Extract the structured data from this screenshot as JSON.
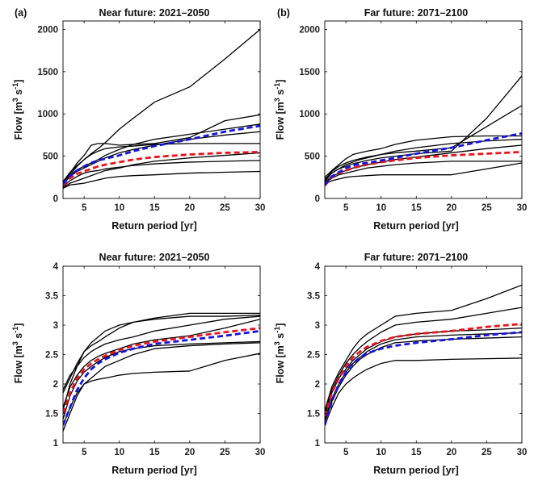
{
  "colors": {
    "black": "#000000",
    "mean_a": "#e8141c",
    "mean_b": "#1414e0"
  },
  "chart_data": [
    {
      "type": "line",
      "panel_label": "(a)",
      "title": "Near future: 2021–2050",
      "xlabel": "Return period [yr]",
      "ylabel": "Flow [m^3 s^-1]",
      "xlim": [
        2,
        30
      ],
      "ylim": [
        0,
        2100
      ],
      "xticks": [
        5,
        10,
        15,
        20,
        25,
        30
      ],
      "yticks": [
        0,
        500,
        1000,
        1500,
        2000
      ],
      "x": [
        2,
        3,
        4,
        5,
        6,
        7,
        8,
        10,
        12,
        15,
        20,
        25,
        30
      ],
      "series": [
        {
          "style": "solid",
          "color": "#000000",
          "values": [
            150,
            280,
            380,
            460,
            530,
            590,
            660,
            820,
            950,
            1140,
            1320,
            1650,
            2000
          ]
        },
        {
          "style": "solid",
          "color": "#000000",
          "values": [
            180,
            300,
            420,
            510,
            630,
            650,
            650,
            630,
            640,
            650,
            720,
            920,
            990
          ]
        },
        {
          "style": "solid",
          "color": "#000000",
          "values": [
            160,
            270,
            340,
            380,
            420,
            460,
            510,
            580,
            640,
            700,
            760,
            820,
            880
          ]
        },
        {
          "style": "solid",
          "color": "#000000",
          "values": [
            200,
            310,
            390,
            460,
            520,
            560,
            590,
            610,
            620,
            640,
            650,
            650,
            650
          ]
        },
        {
          "style": "solid",
          "color": "#000000",
          "values": [
            170,
            260,
            320,
            360,
            400,
            440,
            480,
            540,
            580,
            630,
            700,
            750,
            790
          ]
        },
        {
          "style": "solid",
          "color": "#000000",
          "values": [
            140,
            210,
            260,
            300,
            320,
            330,
            350,
            370,
            390,
            410,
            430,
            440,
            450
          ]
        },
        {
          "style": "solid",
          "color": "#000000",
          "values": [
            120,
            160,
            170,
            180,
            200,
            220,
            240,
            260,
            270,
            280,
            300,
            310,
            320
          ]
        },
        {
          "style": "solid",
          "color": "#000000",
          "values": [
            130,
            180,
            210,
            240,
            270,
            300,
            330,
            360,
            400,
            440,
            480,
            510,
            540
          ]
        },
        {
          "style": "dashed",
          "color": "#e8141c",
          "values": [
            150,
            240,
            290,
            320,
            350,
            380,
            400,
            430,
            460,
            490,
            520,
            540,
            550
          ]
        },
        {
          "style": "dashed",
          "color": "#1414e0",
          "values": [
            170,
            270,
            330,
            380,
            420,
            450,
            470,
            510,
            560,
            620,
            700,
            790,
            860
          ]
        }
      ]
    },
    {
      "type": "line",
      "panel_label": "(b)",
      "title": "Far future: 2071–2100",
      "xlabel": "Return period [yr]",
      "ylabel": "Flow [m^3 s^-1]",
      "xlim": [
        2,
        30
      ],
      "ylim": [
        0,
        2100
      ],
      "xticks": [
        5,
        10,
        15,
        20,
        25,
        30
      ],
      "yticks": [
        0,
        500,
        1000,
        1500,
        2000
      ],
      "x": [
        2,
        3,
        4,
        5,
        6,
        7,
        8,
        10,
        12,
        15,
        20,
        25,
        30
      ],
      "series": [
        {
          "style": "solid",
          "color": "#000000",
          "values": [
            200,
            300,
            350,
            380,
            410,
            430,
            450,
            480,
            500,
            530,
            560,
            950,
            1450
          ]
        },
        {
          "style": "solid",
          "color": "#000000",
          "values": [
            220,
            320,
            380,
            420,
            450,
            470,
            490,
            520,
            540,
            560,
            600,
            850,
            1100
          ]
        },
        {
          "style": "solid",
          "color": "#000000",
          "values": [
            250,
            330,
            400,
            470,
            520,
            540,
            560,
            590,
            640,
            690,
            730,
            740,
            740
          ]
        },
        {
          "style": "solid",
          "color": "#000000",
          "values": [
            230,
            300,
            350,
            400,
            430,
            460,
            480,
            520,
            560,
            600,
            650,
            680,
            700
          ]
        },
        {
          "style": "solid",
          "color": "#000000",
          "values": [
            190,
            260,
            300,
            330,
            360,
            380,
            400,
            430,
            460,
            490,
            540,
            590,
            630
          ]
        },
        {
          "style": "solid",
          "color": "#000000",
          "values": [
            180,
            240,
            280,
            300,
            320,
            340,
            360,
            380,
            400,
            420,
            440,
            440,
            440
          ]
        },
        {
          "style": "solid",
          "color": "#000000",
          "values": [
            170,
            210,
            230,
            250,
            260,
            265,
            270,
            280,
            280,
            280,
            280,
            350,
            420
          ]
        },
        {
          "style": "dashed",
          "color": "#e8141c",
          "values": [
            150,
            250,
            300,
            330,
            360,
            380,
            400,
            430,
            450,
            480,
            510,
            530,
            550
          ]
        },
        {
          "style": "dashed",
          "color": "#1414e0",
          "values": [
            160,
            260,
            310,
            360,
            390,
            410,
            420,
            450,
            480,
            530,
            600,
            690,
            770
          ]
        }
      ]
    },
    {
      "type": "line",
      "title": "Near future: 2021–2050",
      "xlabel": "Return period [yr]",
      "ylabel": "Flow [m^3 s^-1]",
      "xlim": [
        2,
        30
      ],
      "ylim": [
        1,
        4
      ],
      "xticks": [
        5,
        10,
        15,
        20,
        25,
        30
      ],
      "yticks": [
        1,
        1.5,
        2,
        2.5,
        3,
        3.5,
        4
      ],
      "x": [
        2,
        3,
        4,
        5,
        6,
        7,
        8,
        10,
        12,
        15,
        20,
        25,
        30
      ],
      "series": [
        {
          "style": "solid",
          "color": "#000000",
          "values": [
            1.85,
            2.1,
            2.35,
            2.55,
            2.7,
            2.8,
            2.9,
            3.0,
            3.05,
            3.12,
            3.2,
            3.2,
            3.2
          ]
        },
        {
          "style": "solid",
          "color": "#000000",
          "values": [
            1.55,
            2.0,
            2.3,
            2.55,
            2.65,
            2.72,
            2.8,
            2.95,
            3.05,
            3.1,
            3.15,
            3.15,
            3.17
          ]
        },
        {
          "style": "solid",
          "color": "#000000",
          "values": [
            1.9,
            2.15,
            2.3,
            2.45,
            2.55,
            2.62,
            2.68,
            2.75,
            2.8,
            2.9,
            3.0,
            3.1,
            3.15
          ]
        },
        {
          "style": "solid",
          "color": "#000000",
          "values": [
            1.6,
            1.95,
            2.15,
            2.3,
            2.4,
            2.47,
            2.52,
            2.6,
            2.68,
            2.75,
            2.82,
            2.95,
            3.1
          ]
        },
        {
          "style": "solid",
          "color": "#000000",
          "values": [
            1.4,
            1.8,
            2.05,
            2.2,
            2.3,
            2.38,
            2.45,
            2.55,
            2.6,
            2.65,
            2.68,
            2.7,
            2.72
          ]
        },
        {
          "style": "solid",
          "color": "#000000",
          "values": [
            1.2,
            1.5,
            1.8,
            2.0,
            2.1,
            2.2,
            2.3,
            2.4,
            2.5,
            2.6,
            2.65,
            2.68,
            2.7
          ]
        },
        {
          "style": "solid",
          "color": "#000000",
          "values": [
            1.3,
            1.6,
            1.85,
            2.0,
            2.05,
            2.08,
            2.1,
            2.15,
            2.18,
            2.2,
            2.22,
            2.4,
            2.52
          ]
        },
        {
          "style": "dashed",
          "color": "#e8141c",
          "values": [
            1.5,
            1.85,
            2.1,
            2.25,
            2.35,
            2.42,
            2.48,
            2.58,
            2.65,
            2.72,
            2.8,
            2.88,
            2.95
          ]
        },
        {
          "style": "dashed",
          "color": "#1414e0",
          "values": [
            1.3,
            1.6,
            1.9,
            2.1,
            2.25,
            2.35,
            2.42,
            2.53,
            2.6,
            2.68,
            2.75,
            2.82,
            2.9
          ]
        }
      ]
    },
    {
      "type": "line",
      "title": "Far future: 2071–2100",
      "xlabel": "Return period [yr]",
      "ylabel": "Flow [m^3 s^-1]",
      "xlim": [
        2,
        30
      ],
      "ylim": [
        1,
        4
      ],
      "xticks": [
        5,
        10,
        15,
        20,
        25,
        30
      ],
      "yticks": [
        1,
        1.5,
        2,
        2.5,
        3,
        3.5,
        4
      ],
      "x": [
        2,
        3,
        4,
        5,
        6,
        7,
        8,
        10,
        12,
        15,
        20,
        25,
        30
      ],
      "series": [
        {
          "style": "solid",
          "color": "#000000",
          "values": [
            1.55,
            1.95,
            2.2,
            2.4,
            2.6,
            2.75,
            2.85,
            3.0,
            3.15,
            3.2,
            3.25,
            3.45,
            3.68
          ]
        },
        {
          "style": "solid",
          "color": "#000000",
          "values": [
            1.5,
            1.9,
            2.15,
            2.35,
            2.5,
            2.62,
            2.72,
            2.88,
            3.0,
            3.05,
            3.1,
            3.2,
            3.3
          ]
        },
        {
          "style": "solid",
          "color": "#000000",
          "values": [
            1.45,
            1.85,
            2.1,
            2.25,
            2.4,
            2.5,
            2.6,
            2.72,
            2.8,
            2.85,
            2.9,
            2.92,
            2.95
          ]
        },
        {
          "style": "solid",
          "color": "#000000",
          "values": [
            1.4,
            1.75,
            2.0,
            2.2,
            2.35,
            2.45,
            2.55,
            2.68,
            2.75,
            2.8,
            2.83,
            2.85,
            2.87
          ]
        },
        {
          "style": "solid",
          "color": "#000000",
          "values": [
            1.35,
            1.7,
            1.95,
            2.15,
            2.3,
            2.42,
            2.5,
            2.62,
            2.7,
            2.73,
            2.76,
            2.78,
            2.8
          ]
        },
        {
          "style": "solid",
          "color": "#000000",
          "values": [
            1.3,
            1.6,
            1.85,
            2.0,
            2.1,
            2.18,
            2.25,
            2.35,
            2.4,
            2.4,
            2.42,
            2.43,
            2.44
          ]
        },
        {
          "style": "dashed",
          "color": "#e8141c",
          "values": [
            1.45,
            1.85,
            2.1,
            2.3,
            2.45,
            2.55,
            2.63,
            2.73,
            2.8,
            2.85,
            2.9,
            2.97,
            3.02
          ]
        },
        {
          "style": "dashed",
          "color": "#1414e0",
          "values": [
            1.3,
            1.7,
            2.0,
            2.2,
            2.35,
            2.45,
            2.52,
            2.6,
            2.65,
            2.7,
            2.76,
            2.83,
            2.88
          ]
        }
      ]
    }
  ]
}
